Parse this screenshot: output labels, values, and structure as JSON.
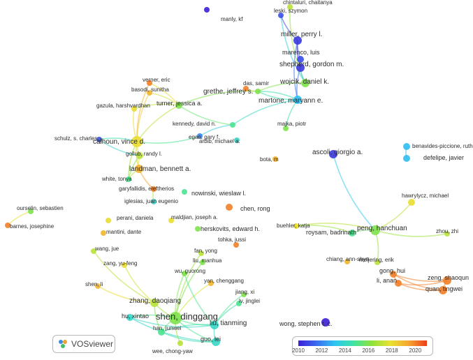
{
  "app": {
    "logo_label": "VOSviewer",
    "logo_icon": "vosviewer-logo-icon"
  },
  "legend": {
    "ticks": [
      "2010",
      "2012",
      "2014",
      "2016",
      "2018",
      "2020"
    ],
    "range": [
      2010,
      2021
    ],
    "colors": [
      "#3b1fd6",
      "#3b6cf0",
      "#2fc6f0",
      "#3fe3a4",
      "#8fe23a",
      "#e9e233",
      "#f5a62f",
      "#ee3d1b"
    ]
  },
  "network": {
    "nodes": [
      {
        "id": "manly",
        "label": "manly, kf",
        "year": 2010
      },
      {
        "id": "chintaluri",
        "label": "chintaluri, chaitanya",
        "year": 2017
      },
      {
        "id": "leski",
        "label": "leski, szymon",
        "year": 2011
      },
      {
        "id": "miller",
        "label": "miller, perry l.",
        "year": 2010.5
      },
      {
        "id": "marenco",
        "label": "marenco, luis",
        "year": 2011
      },
      {
        "id": "shepherd",
        "label": "shepherd, gordon m.",
        "year": 2010.5
      },
      {
        "id": "wojcik",
        "label": "wojcik, daniel k.",
        "year": 2016
      },
      {
        "id": "das",
        "label": "das, samir",
        "year": 2020
      },
      {
        "id": "grethe",
        "label": "grethe, jeffrey s.",
        "year": 2016
      },
      {
        "id": "martone",
        "label": "martone, maryann e.",
        "year": 2013
      },
      {
        "id": "verner",
        "label": "verner, eric",
        "year": 2020
      },
      {
        "id": "basodi",
        "label": "basodi, sunitha",
        "year": 2019
      },
      {
        "id": "gazula",
        "label": "gazula, harshvardhan",
        "year": 2018
      },
      {
        "id": "turner",
        "label": "turner, jessica a.",
        "year": 2016
      },
      {
        "id": "kennedy",
        "label": "kennedy, david n.",
        "year": 2015
      },
      {
        "id": "egan",
        "label": "egan, gary f.",
        "year": 2012
      },
      {
        "id": "arbib",
        "label": "arbib, michael a.",
        "year": 2014
      },
      {
        "id": "majka",
        "label": "majka, piotr",
        "year": 2016
      },
      {
        "id": "bota",
        "label": "bota, m",
        "year": 2019
      },
      {
        "id": "schulz",
        "label": "schulz, s. charles",
        "year": 2011
      },
      {
        "id": "calhoun",
        "label": "calhoun, vince d.",
        "year": 2018
      },
      {
        "id": "gollub",
        "label": "gollub, randy l.",
        "year": 2017
      },
      {
        "id": "landman",
        "label": "landman, bennett a.",
        "year": 2019
      },
      {
        "id": "white",
        "label": "white, tonya",
        "year": 2015
      },
      {
        "id": "garyfallidis",
        "label": "garyfallidis, eleftherios",
        "year": 2020
      },
      {
        "id": "iglesias",
        "label": "iglesias, juan eugenio",
        "year": 2014
      },
      {
        "id": "nowinski",
        "label": "nowinski, wieslaw l.",
        "year": 2015
      },
      {
        "id": "chenrong",
        "label": "chen, rong",
        "year": 2020
      },
      {
        "id": "ascoli",
        "label": "ascoli, giorgio a.",
        "year": 2010.5
      },
      {
        "id": "benavides",
        "label": "benavides-piccione, ruth",
        "year": 2013
      },
      {
        "id": "defelipe",
        "label": "defelipe, javier",
        "year": 2013
      },
      {
        "id": "ourselin",
        "label": "ourselin, sebastien",
        "year": 2016
      },
      {
        "id": "barnes",
        "label": "barnes, josephine",
        "year": 2020
      },
      {
        "id": "perani",
        "label": "perani, daniela",
        "year": 2018
      },
      {
        "id": "mantini",
        "label": "mantini, dante",
        "year": 2019
      },
      {
        "id": "maldjian",
        "label": "maldjian, joseph a.",
        "year": 2018
      },
      {
        "id": "herskovits",
        "label": "herskovits, edward h.",
        "year": 2016
      },
      {
        "id": "hawrylycz",
        "label": "hawrylycz, michael",
        "year": 2018
      },
      {
        "id": "buehler",
        "label": "buehler, katja",
        "year": 2018
      },
      {
        "id": "roysam",
        "label": "roysam, badrinath",
        "year": 2015
      },
      {
        "id": "peng",
        "label": "peng, hanchuan",
        "year": 2016
      },
      {
        "id": "zhou",
        "label": "zhou, zhi",
        "year": 2017
      },
      {
        "id": "wangjue",
        "label": "wang, jue",
        "year": 2017
      },
      {
        "id": "tohka",
        "label": "tohka, jussi",
        "year": 2020
      },
      {
        "id": "fanyong",
        "label": "fan, yong",
        "year": 2017
      },
      {
        "id": "liumanhua",
        "label": "liu, manhua",
        "year": 2016
      },
      {
        "id": "meijering",
        "label": "meijering, erik",
        "year": 2017
      },
      {
        "id": "zangyufeng",
        "label": "zang, yu-feng",
        "year": 2018
      },
      {
        "id": "chiang",
        "label": "chiang, ann-shyn",
        "year": 2019
      },
      {
        "id": "wuguorong",
        "label": "wu, guorong",
        "year": 2016
      },
      {
        "id": "gonghui",
        "label": "gong, hui",
        "year": 2020
      },
      {
        "id": "lianan",
        "label": "li, anan",
        "year": 2020
      },
      {
        "id": "zengshaoqun",
        "label": "zeng, shaoqun",
        "year": 2020
      },
      {
        "id": "luantingwei",
        "label": "quan, tingwei",
        "year": 2020
      },
      {
        "id": "shenli",
        "label": "shen, li",
        "year": 2019
      },
      {
        "id": "yanchenggang",
        "label": "yan, chenggang",
        "year": 2019
      },
      {
        "id": "jiangxi",
        "label": "jiang, xi",
        "year": 2016
      },
      {
        "id": "lvjinglei",
        "label": "lv, jinglei",
        "year": 2015
      },
      {
        "id": "zhangdaoqiang",
        "label": "zhang, daoqiang",
        "year": 2017
      },
      {
        "id": "huxintao",
        "label": "hu, xintao",
        "year": 2014
      },
      {
        "id": "shendinggang",
        "label": "shen, dinggang",
        "year": 2016
      },
      {
        "id": "liutianming",
        "label": "liu, tianming",
        "year": 2014
      },
      {
        "id": "hanjunwei",
        "label": "han, junwei",
        "year": 2015
      },
      {
        "id": "guolei",
        "label": "guo, lei",
        "year": 2014
      },
      {
        "id": "wongstephen",
        "label": "wong, stephen t. c.",
        "year": 2010
      },
      {
        "id": "weechong",
        "label": "wee, chong-yaw",
        "year": 2017
      }
    ],
    "links": [
      [
        "leski",
        "wojcik"
      ],
      [
        "chintaluri",
        "wojcik"
      ],
      [
        "leski",
        "miller"
      ],
      [
        "miller",
        "marenco"
      ],
      [
        "marenco",
        "shepherd"
      ],
      [
        "miller",
        "shepherd"
      ],
      [
        "shepherd",
        "wojcik"
      ],
      [
        "miller",
        "martone"
      ],
      [
        "shepherd",
        "martone"
      ],
      [
        "wojcik",
        "grethe"
      ],
      [
        "das",
        "grethe"
      ],
      [
        "grethe",
        "martone"
      ],
      [
        "martone",
        "majka"
      ],
      [
        "martone",
        "grethe"
      ],
      [
        "martone",
        "kennedy"
      ],
      [
        "verner",
        "calhoun"
      ],
      [
        "basodi",
        "calhoun"
      ],
      [
        "gazula",
        "calhoun"
      ],
      [
        "turner",
        "calhoun"
      ],
      [
        "turner",
        "gazula"
      ],
      [
        "turner",
        "basodi"
      ],
      [
        "turner",
        "verner"
      ],
      [
        "turner",
        "kennedy"
      ],
      [
        "grethe",
        "turner"
      ],
      [
        "calhoun",
        "schulz"
      ],
      [
        "calhoun",
        "gollub"
      ],
      [
        "calhoun",
        "landman"
      ],
      [
        "calhoun",
        "white"
      ],
      [
        "gollub",
        "landman"
      ],
      [
        "landman",
        "white"
      ],
      [
        "landman",
        "garyfallidis"
      ],
      [
        "gollub",
        "white"
      ],
      [
        "schulz",
        "gollub"
      ],
      [
        "calhoun",
        "egan"
      ],
      [
        "kennedy",
        "egan"
      ],
      [
        "garyfallidis",
        "iglesias"
      ],
      [
        "ascoli",
        "peng"
      ],
      [
        "benavides",
        "defelipe"
      ],
      [
        "ourselin",
        "barnes"
      ],
      [
        "peng",
        "roysam"
      ],
      [
        "peng",
        "hawrylycz"
      ],
      [
        "peng",
        "zhou"
      ],
      [
        "peng",
        "buehler"
      ],
      [
        "roysam",
        "buehler"
      ],
      [
        "meijering",
        "peng"
      ],
      [
        "gonghui",
        "zengshaoqun"
      ],
      [
        "gonghui",
        "luantingwei"
      ],
      [
        "lianan",
        "zengshaoqun"
      ],
      [
        "lianan",
        "luantingwei"
      ],
      [
        "gonghui",
        "lianan"
      ],
      [
        "zengshaoqun",
        "luantingwei"
      ],
      [
        "wangjue",
        "zhangdaoqiang"
      ],
      [
        "zangyufeng",
        "zhangdaoqiang"
      ],
      [
        "shenli",
        "zhangdaoqiang"
      ],
      [
        "zhangdaoqiang",
        "shendinggang"
      ],
      [
        "wuguorong",
        "shendinggang"
      ],
      [
        "yanchenggang",
        "shendinggang"
      ],
      [
        "liumanhua",
        "shendinggang"
      ],
      [
        "fanyong",
        "shendinggang"
      ],
      [
        "shendinggang",
        "liutianming"
      ],
      [
        "shendinggang",
        "huxintao"
      ],
      [
        "shendinggang",
        "hanjunwei"
      ],
      [
        "shendinggang",
        "guolei"
      ],
      [
        "liutianming",
        "guolei"
      ],
      [
        "liutianming",
        "hanjunwei"
      ],
      [
        "huxintao",
        "liutianming"
      ],
      [
        "huxintao",
        "guolei"
      ],
      [
        "jiangxi",
        "liutianming"
      ],
      [
        "lvjinglei",
        "liutianming"
      ],
      [
        "hanjunwei",
        "guolei"
      ],
      [
        "shendinggang",
        "weechong"
      ],
      [
        "zhangdaoqiang",
        "hanjunwei"
      ],
      [
        "wuguorong",
        "liutianming"
      ]
    ]
  }
}
